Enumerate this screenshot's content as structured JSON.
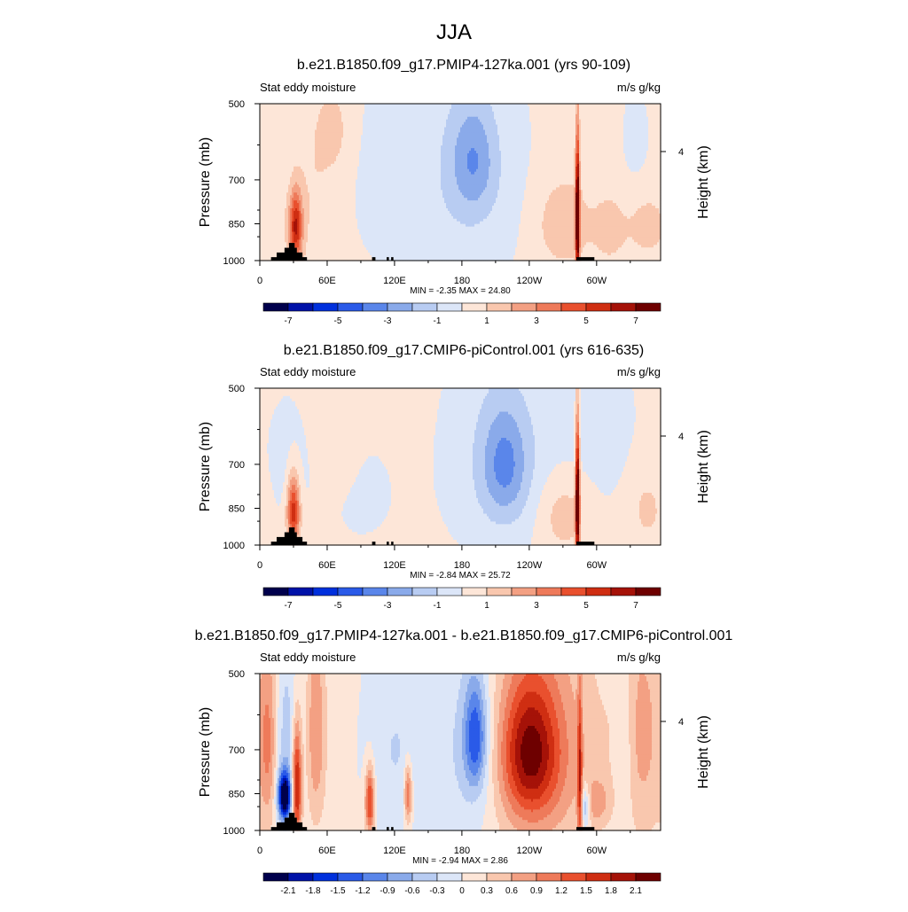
{
  "main_title": "JJA",
  "colors": {
    "diverging": [
      "#00004c",
      "#0012a8",
      "#0030dd",
      "#2a5ae8",
      "#5a86ea",
      "#8aaaea",
      "#b8ccf2",
      "#dce6f8",
      "#fde6d8",
      "#f9c7ae",
      "#f3a083",
      "#ee7a5a",
      "#e9502e",
      "#cf2e12",
      "#a51208",
      "#6e0000"
    ],
    "topography": "#000000"
  },
  "chart_data": [
    {
      "type": "heatmap",
      "title": "b.e21.B1850.f09_g17.PMIP4-127ka.001 (yrs 90-109)",
      "left_string": "Stat eddy moisture",
      "right_string": "m/s g/kg",
      "ylabel": "Pressure (mb)",
      "y2label": "Height (km)",
      "y_ticks": [
        "500",
        "700",
        "850",
        "1000"
      ],
      "y_tick_values": [
        500,
        700,
        850,
        1000
      ],
      "y2_ticks": [
        "4"
      ],
      "x_ticks": [
        "0",
        "60E",
        "120E",
        "180",
        "120W",
        "60W"
      ],
      "x_tick_values": [
        0,
        60,
        120,
        180,
        240,
        300
      ],
      "xlim": [
        0,
        357
      ],
      "ylim": [
        1000,
        500
      ],
      "stats": "MIN =  -2.35  MAX =  24.80",
      "colorbar_labels": [
        "-7",
        "-5",
        "-3",
        "-1",
        "1",
        "3",
        "5",
        "7"
      ],
      "colorbar_levels": [
        -7,
        -6,
        -5,
        -4,
        -3,
        -2,
        -1,
        0,
        1,
        2,
        3,
        4,
        5,
        6,
        7
      ],
      "features": [
        {
          "lon": 190,
          "p": 640,
          "sx": 14,
          "sy": 110,
          "v": -2.3
        },
        {
          "lon": 180,
          "p": 700,
          "sx": 40,
          "sy": 260,
          "v": -1.2
        },
        {
          "lon": 25,
          "p": 620,
          "sx": 12,
          "sy": 120,
          "v": -0.6
        },
        {
          "lon": 105,
          "p": 700,
          "sx": 18,
          "sy": 200,
          "v": -0.6
        },
        {
          "lon": 335,
          "p": 580,
          "sx": 10,
          "sy": 100,
          "v": -0.6
        },
        {
          "lon": 68,
          "p": 560,
          "sx": 12,
          "sy": 90,
          "v": 0.8
        },
        {
          "lon": 32,
          "p": 860,
          "sx": 4,
          "sy": 90,
          "v": 5.5
        },
        {
          "lon": 38,
          "p": 720,
          "sx": 20,
          "sy": 220,
          "v": 0.8
        },
        {
          "lon": 270,
          "p": 850,
          "sx": 18,
          "sy": 120,
          "v": 1.5
        },
        {
          "lon": 283,
          "p": 820,
          "sx": 1.3,
          "sy": 180,
          "v": 9
        },
        {
          "lon": 312,
          "p": 870,
          "sx": 10,
          "sy": 90,
          "v": 1.2
        },
        {
          "lon": 345,
          "p": 860,
          "sx": 12,
          "sy": 80,
          "v": 1.2
        }
      ],
      "background": 0.3
    },
    {
      "type": "heatmap",
      "title": "b.e21.B1850.f09_g17.CMIP6-piControl.001 (yrs 616-635)",
      "left_string": "Stat eddy moisture",
      "right_string": "m/s g/kg",
      "ylabel": "Pressure (mb)",
      "y2label": "Height (km)",
      "y_ticks": [
        "500",
        "700",
        "850",
        "1000"
      ],
      "y_tick_values": [
        500,
        700,
        850,
        1000
      ],
      "y2_ticks": [
        "4"
      ],
      "x_ticks": [
        "0",
        "60E",
        "120E",
        "180",
        "120W",
        "60W"
      ],
      "x_tick_values": [
        0,
        60,
        120,
        180,
        240,
        300
      ],
      "xlim": [
        0,
        357
      ],
      "ylim": [
        1000,
        500
      ],
      "stats": "MIN =  -2.84  MAX =  25.72",
      "colorbar_labels": [
        "-7",
        "-5",
        "-3",
        "-1",
        "1",
        "3",
        "5",
        "7"
      ],
      "colorbar_levels": [
        -7,
        -6,
        -5,
        -4,
        -3,
        -2,
        -1,
        0,
        1,
        2,
        3,
        4,
        5,
        6,
        7
      ],
      "features": [
        {
          "lon": 218,
          "p": 700,
          "sx": 14,
          "sy": 120,
          "v": -2.5
        },
        {
          "lon": 215,
          "p": 690,
          "sx": 35,
          "sy": 230,
          "v": -1.3
        },
        {
          "lon": 300,
          "p": 600,
          "sx": 30,
          "sy": 200,
          "v": -0.6
        },
        {
          "lon": 25,
          "p": 700,
          "sx": 15,
          "sy": 150,
          "v": -0.6
        },
        {
          "lon": 90,
          "p": 800,
          "sx": 25,
          "sy": 150,
          "v": -0.5
        },
        {
          "lon": 70,
          "p": 600,
          "sx": 12,
          "sy": 120,
          "v": 0.8
        },
        {
          "lon": 30,
          "p": 860,
          "sx": 4,
          "sy": 90,
          "v": 5.5
        },
        {
          "lon": 283,
          "p": 820,
          "sx": 1.3,
          "sy": 180,
          "v": 9
        },
        {
          "lon": 270,
          "p": 870,
          "sx": 16,
          "sy": 110,
          "v": 1.5
        },
        {
          "lon": 345,
          "p": 850,
          "sx": 12,
          "sy": 100,
          "v": 1.0
        }
      ],
      "background": 0.3
    },
    {
      "type": "heatmap",
      "title": "b.e21.B1850.f09_g17.PMIP4-127ka.001 - b.e21.B1850.f09_g17.CMIP6-piControl.001",
      "left_string": "Stat eddy moisture",
      "right_string": "m/s g/kg",
      "ylabel": "Pressure (mb)",
      "y2label": "Height (km)",
      "y_ticks": [
        "500",
        "700",
        "850",
        "1000"
      ],
      "y_tick_values": [
        500,
        700,
        850,
        1000
      ],
      "y2_ticks": [
        "4"
      ],
      "x_ticks": [
        "0",
        "60E",
        "120E",
        "180",
        "120W",
        "60W"
      ],
      "x_tick_values": [
        0,
        60,
        120,
        180,
        240,
        300
      ],
      "xlim": [
        0,
        357
      ],
      "ylim": [
        1000,
        500
      ],
      "stats": "MIN =  -2.94  MAX =  2.86",
      "colorbar_labels": [
        "-2.1",
        "-1.8",
        "-1.5",
        "-1.2",
        "-0.9",
        "-0.6",
        "-0.3",
        "0",
        "0.3",
        "0.6",
        "0.9",
        "1.2",
        "1.5",
        "1.8",
        "2.1"
      ],
      "colorbar_levels": [
        -2.1,
        -1.8,
        -1.5,
        -1.2,
        -0.9,
        -0.6,
        -0.3,
        0,
        0.3,
        0.6,
        0.9,
        1.2,
        1.5,
        1.8,
        2.1
      ],
      "features": [
        {
          "lon": 192,
          "p": 660,
          "sx": 7,
          "sy": 110,
          "v": -1.3
        },
        {
          "lon": 190,
          "p": 700,
          "sx": 24,
          "sy": 240,
          "v": -0.6
        },
        {
          "lon": 240,
          "p": 710,
          "sx": 18,
          "sy": 150,
          "v": 1.5
        },
        {
          "lon": 245,
          "p": 700,
          "sx": 35,
          "sy": 260,
          "v": 0.8
        },
        {
          "lon": 22,
          "p": 860,
          "sx": 4,
          "sy": 60,
          "v": -2.6
        },
        {
          "lon": 22,
          "p": 700,
          "sx": 10,
          "sy": 220,
          "v": -0.6
        },
        {
          "lon": 33,
          "p": 820,
          "sx": 3,
          "sy": 150,
          "v": 2.0
        },
        {
          "lon": 8,
          "p": 680,
          "sx": 6,
          "sy": 200,
          "v": 1.0
        },
        {
          "lon": 50,
          "p": 650,
          "sx": 6,
          "sy": 200,
          "v": 0.8
        },
        {
          "lon": 98,
          "p": 880,
          "sx": 3,
          "sy": 90,
          "v": 1.6
        },
        {
          "lon": 132,
          "p": 850,
          "sx": 2.5,
          "sy": 80,
          "v": 1.3
        },
        {
          "lon": 120,
          "p": 700,
          "sx": 20,
          "sy": 250,
          "v": -0.4
        },
        {
          "lon": 285,
          "p": 800,
          "sx": 1.5,
          "sy": 200,
          "v": 1.4
        },
        {
          "lon": 290,
          "p": 900,
          "sx": 3,
          "sy": 60,
          "v": -1.0
        },
        {
          "lon": 300,
          "p": 880,
          "sx": 8,
          "sy": 60,
          "v": 0.6
        },
        {
          "lon": 340,
          "p": 650,
          "sx": 15,
          "sy": 250,
          "v": 0.6
        },
        {
          "lon": 325,
          "p": 700,
          "sx": 6,
          "sy": 200,
          "v": -0.4
        }
      ],
      "background": 0.1
    }
  ]
}
